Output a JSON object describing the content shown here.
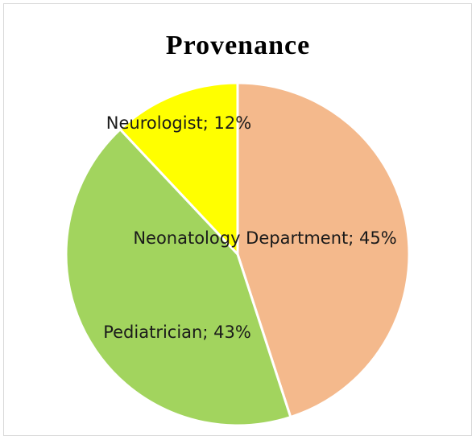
{
  "chart_data": {
    "type": "pie",
    "title": "Provenance",
    "slices": [
      {
        "label": "Neonatology Department",
        "value": 45,
        "display": "Neonatology Department; 45%",
        "color": "#F4B98C"
      },
      {
        "label": "Pediatrician",
        "value": 43,
        "display": "Pediatrician; 43%",
        "color": "#A2D45E"
      },
      {
        "label": "Neurologist",
        "value": 12,
        "display": "Neurologist; 12%",
        "color": "#FFFF00"
      }
    ],
    "start_angle_deg": 0,
    "direction": "clockwise",
    "labels_inside": true,
    "legend": "none"
  }
}
